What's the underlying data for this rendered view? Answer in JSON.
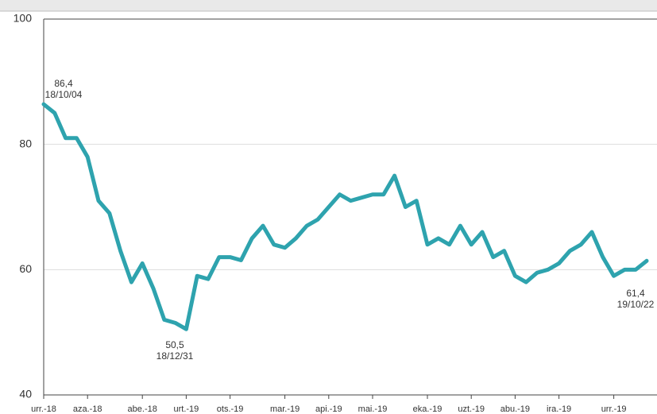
{
  "chart_data": {
    "type": "line",
    "categories": [
      "urr.-18",
      null,
      null,
      null,
      "aza.-18",
      null,
      null,
      null,
      null,
      "abe.-18",
      null,
      null,
      null,
      "urt.-19",
      null,
      null,
      null,
      "ots.-19",
      null,
      null,
      null,
      null,
      "mar.-19",
      null,
      null,
      null,
      "api.-19",
      null,
      null,
      null,
      "mai.-19",
      null,
      null,
      null,
      null,
      "eka.-19",
      null,
      null,
      null,
      "uzt.-19",
      null,
      null,
      null,
      "abu.-19",
      null,
      null,
      null,
      "ira.-19",
      null,
      null,
      null,
      null,
      "urr.-19",
      null,
      null,
      null
    ],
    "series": [
      {
        "color": "#2ea3ae",
        "values": [
          86.4,
          85,
          81,
          81,
          78,
          71,
          69,
          63,
          58,
          61,
          57,
          52,
          51.5,
          50.5,
          59,
          58.5,
          62,
          62,
          61.5,
          65,
          67,
          64,
          63.5,
          65,
          67,
          68,
          70,
          72,
          71,
          71.5,
          72,
          72,
          75,
          70,
          71,
          64,
          65,
          64,
          67,
          64,
          66,
          62,
          63,
          59,
          58,
          59.5,
          60,
          61,
          63,
          64,
          66,
          62,
          59,
          60,
          60,
          61.4
        ]
      }
    ],
    "ylim": [
      40,
      100
    ],
    "yticks": [
      40,
      60,
      80,
      100
    ],
    "grid": true,
    "annotations": [
      {
        "text": "86,4",
        "date": "18/10/04"
      },
      {
        "text": "50,5",
        "date": "18/12/31"
      },
      {
        "text": "61,4",
        "date": "19/10/22"
      }
    ]
  }
}
